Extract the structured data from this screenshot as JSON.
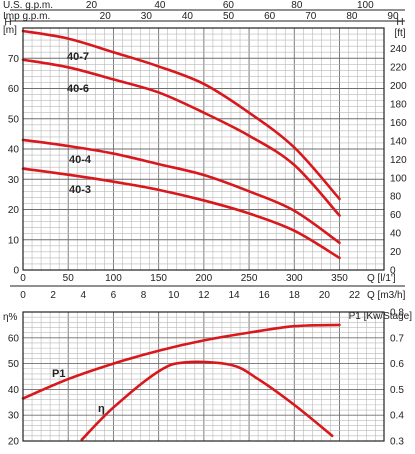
{
  "chart_data": [
    {
      "type": "line",
      "top_axis_rows": [
        {
          "label": "U.S. g.p.m.",
          "ticks": [
            0,
            20,
            40,
            60,
            80,
            100
          ]
        },
        {
          "label": "Imp g.p.m.",
          "ticks": [
            20,
            30,
            40,
            50,
            60,
            70,
            80,
            90
          ]
        }
      ],
      "left_axis": {
        "label": "H",
        "unit": "[m]",
        "ylim": [
          0,
          80
        ],
        "ticks": [
          0,
          10,
          20,
          30,
          40,
          50,
          60,
          70
        ]
      },
      "right_axis": {
        "label": "H",
        "unit": "[ft]",
        "ticks": [
          0,
          20,
          40,
          60,
          80,
          100,
          120,
          140,
          160,
          180,
          200,
          220,
          240
        ]
      },
      "bottom_axis_rows": [
        {
          "label": "Q [l/1']",
          "xlim": [
            0,
            350
          ],
          "ticks": [
            0,
            50,
            100,
            150,
            200,
            250,
            300,
            350
          ]
        },
        {
          "label": "Q [m3/h]",
          "ticks": [
            0,
            2,
            4,
            6,
            8,
            10,
            12,
            14,
            16,
            18,
            20,
            22
          ]
        }
      ],
      "grid": true,
      "series": [
        {
          "name": "40-7",
          "x": [
            0,
            50,
            100,
            150,
            200,
            250,
            300,
            350
          ],
          "y": [
            79,
            76.5,
            72,
            67.3,
            61.5,
            52,
            40.5,
            23.5
          ]
        },
        {
          "name": "40-6",
          "x": [
            0,
            50,
            100,
            150,
            200,
            250,
            300,
            350
          ],
          "y": [
            69.5,
            67,
            63,
            58.7,
            52,
            44.4,
            34.7,
            18
          ]
        },
        {
          "name": "40-4",
          "x": [
            0,
            50,
            100,
            150,
            200,
            250,
            300,
            350
          ],
          "y": [
            43,
            41,
            38.5,
            35,
            31.4,
            26,
            19.6,
            9
          ]
        },
        {
          "name": "40-3",
          "x": [
            0,
            50,
            100,
            150,
            200,
            250,
            300,
            350
          ],
          "y": [
            33.5,
            31.5,
            29.2,
            26.5,
            23,
            18.7,
            13,
            4
          ]
        }
      ]
    },
    {
      "type": "line",
      "left_axis": {
        "label": "η%",
        "ylim": [
          20,
          70
        ],
        "ticks": [
          20,
          30,
          40,
          50,
          60
        ]
      },
      "right_axis": {
        "label": "P1 [Kw/Stage]",
        "ylim": [
          0.3,
          0.8
        ],
        "ticks": [
          0.3,
          0.4,
          0.5,
          0.6,
          0.7,
          0.8
        ]
      },
      "xlim": [
        0,
        350
      ],
      "grid": true,
      "series": [
        {
          "name": "P1",
          "axis": "right",
          "x": [
            0,
            50,
            100,
            150,
            200,
            250,
            300,
            350
          ],
          "y": [
            0.465,
            0.54,
            0.6,
            0.65,
            0.69,
            0.72,
            0.745,
            0.75
          ]
        },
        {
          "name": "η",
          "axis": "left",
          "x": [
            65,
            100,
            150,
            180,
            230,
            260,
            300,
            342
          ],
          "y": [
            20.5,
            33,
            47,
            50.5,
            49.5,
            44,
            34,
            22
          ]
        }
      ]
    }
  ],
  "colors": {
    "curve": "#d8181d",
    "grid_major": "#6f6f6f",
    "grid_minor": "#b9b9b9",
    "axis_text": "#222222"
  }
}
